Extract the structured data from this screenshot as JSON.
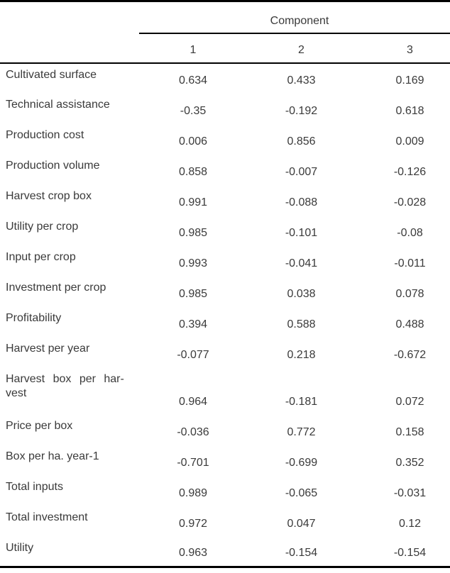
{
  "table": {
    "spanner_label": "Component",
    "column_headers": [
      "1",
      "2",
      "3"
    ],
    "rows": [
      {
        "label": "Cultivated surface",
        "values": [
          "0.634",
          "0.433",
          "0.169"
        ]
      },
      {
        "label": "Technical assistance",
        "values": [
          "-0.35",
          "-0.192",
          "0.618"
        ]
      },
      {
        "label": "Production cost",
        "values": [
          "0.006",
          "0.856",
          "0.009"
        ]
      },
      {
        "label": "Production volume",
        "values": [
          "0.858",
          "-0.007",
          "-0.126"
        ]
      },
      {
        "label": "Harvest crop box",
        "values": [
          "0.991",
          "-0.088",
          "-0.028"
        ]
      },
      {
        "label": "Utility per crop",
        "values": [
          "0.985",
          "-0.101",
          "-0.08"
        ]
      },
      {
        "label": "Input per crop",
        "values": [
          "0.993",
          "-0.041",
          "-0.011"
        ]
      },
      {
        "label": "Investment per crop",
        "values": [
          "0.985",
          "0.038",
          "0.078"
        ]
      },
      {
        "label": "Profitability",
        "values": [
          "0.394",
          "0.588",
          "0.488"
        ]
      },
      {
        "label": "Harvest per year",
        "values": [
          "-0.077",
          "0.218",
          "-0.672"
        ]
      },
      {
        "label": "Harvest box per har-",
        "label_line2": "vest",
        "values": [
          "0.964",
          "-0.181",
          "0.072"
        ]
      },
      {
        "label": "Price per box",
        "values": [
          "-0.036",
          "0.772",
          "0.158"
        ]
      },
      {
        "label": "Box per ha. year-1",
        "values": [
          "-0.701",
          "-0.699",
          "0.352"
        ]
      },
      {
        "label": "Total inputs",
        "values": [
          "0.989",
          "-0.065",
          "-0.031"
        ]
      },
      {
        "label": "Total investment",
        "values": [
          "0.972",
          "0.047",
          "0.12"
        ]
      },
      {
        "label": "Utility",
        "values": [
          "0.963",
          "-0.154",
          "-0.154"
        ]
      }
    ],
    "colors": {
      "text": "#3a3a3a",
      "rule": "#000000",
      "background": "#ffffff"
    }
  },
  "chart_data": {
    "type": "table",
    "title": "Component",
    "categories": [
      "Cultivated surface",
      "Technical assistance",
      "Production cost",
      "Production volume",
      "Harvest crop box",
      "Utility per crop",
      "Input per crop",
      "Investment per crop",
      "Profitability",
      "Harvest per year",
      "Harvest box per harvest",
      "Price per box",
      "Box per ha. year-1",
      "Total inputs",
      "Total investment",
      "Utility"
    ],
    "series": [
      {
        "name": "Component 1",
        "values": [
          0.634,
          -0.35,
          0.006,
          0.858,
          0.991,
          0.985,
          0.993,
          0.985,
          0.394,
          -0.077,
          0.964,
          -0.036,
          -0.701,
          0.989,
          0.972,
          0.963
        ]
      },
      {
        "name": "Component 2",
        "values": [
          0.433,
          -0.192,
          0.856,
          -0.007,
          -0.088,
          -0.101,
          -0.041,
          0.038,
          0.588,
          0.218,
          -0.181,
          0.772,
          -0.699,
          -0.065,
          0.047,
          -0.154
        ]
      },
      {
        "name": "Component 3",
        "values": [
          0.169,
          0.618,
          0.009,
          -0.126,
          -0.028,
          -0.08,
          -0.011,
          0.078,
          0.488,
          -0.672,
          0.072,
          0.158,
          0.352,
          -0.031,
          0.12,
          -0.154
        ]
      }
    ]
  }
}
